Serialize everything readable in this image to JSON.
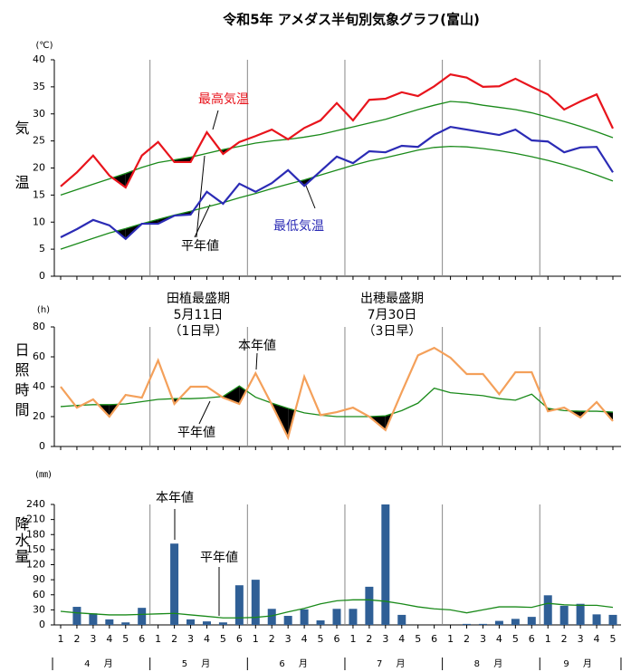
{
  "title": "令和5年 アメダス半旬別気象グラフ(富山)",
  "chart_data": [
    {
      "type": "line",
      "unit": "(℃)",
      "y_label": "気温",
      "ylim": [
        0,
        40
      ],
      "yticks": [
        0,
        5,
        10,
        15,
        20,
        25,
        30,
        35,
        40
      ],
      "annotations": [
        "最高気温",
        "最低気温",
        "平年値"
      ],
      "series": [
        {
          "color": "#e8141c",
          "values": [
            16.6,
            19.2,
            22.3,
            18.6,
            16.4,
            22.3,
            24.8,
            21.1,
            21.1,
            26.6,
            22.6,
            24.8,
            25.9,
            27.1,
            25.3,
            27.4,
            28.8,
            32.0,
            28.8,
            32.6,
            32.8,
            34.0,
            33.3,
            35.1,
            37.3,
            36.7,
            35.0,
            35.1,
            36.5,
            35.0,
            33.6,
            30.8,
            32.3,
            33.6,
            27.3
          ]
        },
        {
          "color": "#1a8a1a",
          "values": [
            15.0,
            16.0,
            17.0,
            18.0,
            19.0,
            20.1,
            21.0,
            21.5,
            22.0,
            22.7,
            23.4,
            24.0,
            24.6,
            25.0,
            25.3,
            25.7,
            26.2,
            26.9,
            27.6,
            28.3,
            29.0,
            29.9,
            30.8,
            31.6,
            32.3,
            32.1,
            31.6,
            31.2,
            30.8,
            30.2,
            29.4,
            28.6,
            27.7,
            26.7,
            25.6
          ]
        },
        {
          "color": "#2b2bb5",
          "values": [
            7.2,
            8.7,
            10.4,
            9.4,
            6.9,
            9.7,
            9.7,
            11.2,
            11.4,
            15.6,
            13.4,
            17.1,
            15.6,
            17.2,
            19.6,
            16.7,
            19.4,
            22.1,
            20.9,
            23.1,
            22.9,
            24.1,
            23.9,
            26.1,
            27.6,
            27.1,
            26.6,
            26.1,
            27.1,
            25.1,
            24.9,
            22.9,
            23.8,
            23.9,
            19.2
          ]
        },
        {
          "color": "#1a8a1a",
          "values": [
            5.0,
            6.0,
            7.0,
            8.0,
            8.8,
            9.7,
            10.5,
            11.3,
            12.0,
            12.8,
            13.6,
            14.5,
            15.3,
            16.2,
            17.0,
            17.8,
            18.7,
            19.6,
            20.5,
            21.3,
            21.9,
            22.6,
            23.3,
            23.8,
            24.0,
            23.9,
            23.6,
            23.2,
            22.7,
            22.1,
            21.4,
            20.6,
            19.7,
            18.7,
            17.6
          ]
        }
      ]
    },
    {
      "type": "line",
      "unit": "(h)",
      "y_label": "日照時間",
      "ylim": [
        0,
        80
      ],
      "yticks": [
        0,
        20,
        40,
        60,
        80
      ],
      "annotations": [
        "本年値",
        "平年値",
        "田植最盛期",
        "5月11日",
        "（1日早）",
        "出穂最盛期",
        "7月30日",
        "（3日早）"
      ],
      "series": [
        {
          "color": "#f4a05a",
          "values": [
            40,
            26,
            31.5,
            20,
            34.5,
            32.7,
            57.6,
            28.5,
            40,
            40,
            32.7,
            28.5,
            49,
            28,
            6,
            46.7,
            21,
            23,
            26,
            20,
            11,
            36.4,
            61,
            66,
            59.4,
            48.5,
            48.5,
            35,
            49.7,
            49.7,
            23.6,
            26,
            19.4,
            29.7,
            17
          ]
        },
        {
          "color": "#1a8a1a",
          "values": [
            26.7,
            27.5,
            28,
            28,
            28.5,
            30,
            31.5,
            32,
            32,
            32.5,
            33.5,
            40.5,
            33,
            29,
            25.5,
            22.5,
            21,
            20,
            20,
            20,
            20.5,
            24,
            29,
            39,
            36,
            35,
            34,
            32,
            31,
            35,
            25.5,
            24,
            23.6,
            23.6,
            23
          ]
        }
      ]
    },
    {
      "type": "combo",
      "unit": "(㎜)",
      "y_label": "降水量",
      "ylim": [
        0,
        240
      ],
      "yticks": [
        0,
        30,
        60,
        90,
        120,
        150,
        180,
        210,
        240
      ],
      "annotations": [
        "本年値",
        "平年値"
      ],
      "categories": [
        1,
        2,
        3,
        4,
        5,
        6,
        1,
        2,
        3,
        4,
        5,
        6,
        1,
        2,
        3,
        4,
        5,
        6,
        1,
        2,
        3,
        4,
        5,
        6,
        1,
        2,
        3,
        4,
        5,
        6,
        1,
        2,
        3,
        4,
        5
      ],
      "months": [
        "4 月",
        "5 月",
        "6 月",
        "7 月",
        "8 月",
        "9 月"
      ],
      "series": [
        {
          "type": "bar",
          "color": "#2f5f96",
          "values": [
            0,
            36,
            23,
            11,
            5,
            34,
            0,
            162,
            11,
            7,
            5,
            79,
            90,
            32,
            18,
            31,
            9,
            32,
            32,
            76,
            240,
            20,
            0,
            0,
            0,
            2,
            2,
            8,
            12,
            16,
            59,
            38,
            42,
            21,
            20
          ]
        },
        {
          "type": "line",
          "color": "#1a8a1a",
          "values": [
            27,
            24,
            22,
            20,
            20,
            21,
            22,
            23,
            20,
            17,
            14,
            14,
            15,
            18,
            26,
            33,
            42,
            48,
            50,
            50,
            47,
            42,
            36,
            32,
            30,
            24,
            30,
            36,
            36,
            35,
            43,
            40,
            39,
            39,
            35
          ]
        }
      ]
    }
  ]
}
